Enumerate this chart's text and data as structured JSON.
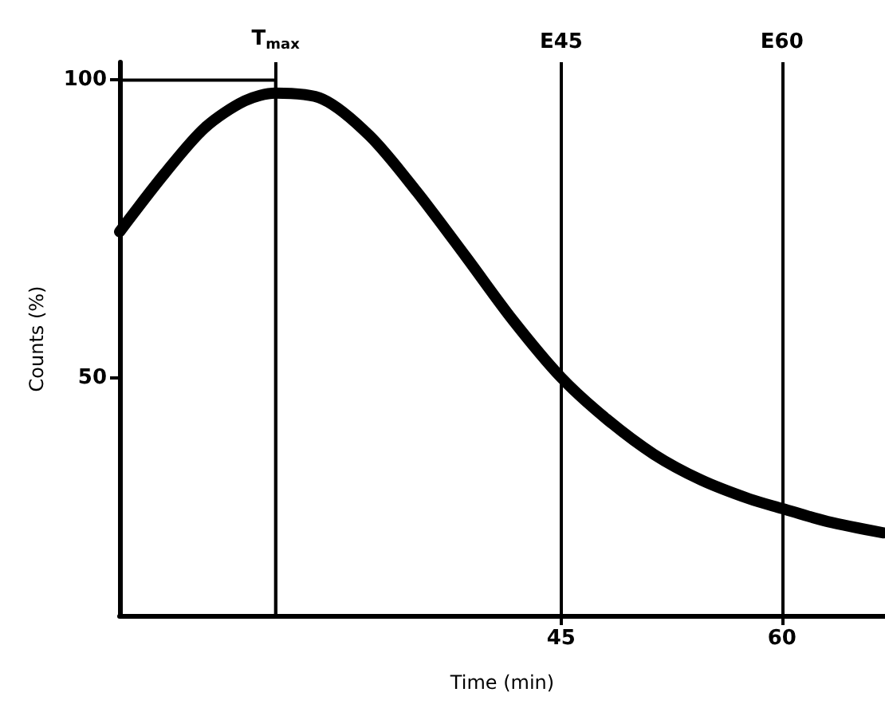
{
  "chart_data": {
    "type": "line",
    "xlabel": "Time (min)",
    "ylabel": "Counts (%)",
    "xlim": [
      15,
      67
    ],
    "xticks": [
      45,
      60
    ],
    "ylim": [
      10,
      103
    ],
    "yticks": [
      50,
      100
    ],
    "grid": false,
    "marker": "none",
    "line_style": "solid",
    "series": [
      {
        "color": "#000000",
        "x": [
          15,
          18.1,
          20.8,
          23.5,
          25.6,
          28.8,
          32.0,
          35.2,
          38.5,
          41.7,
          45,
          48.1,
          51.3,
          54.5,
          57.8,
          60,
          63.1,
          66.9
        ],
        "values": [
          74.5,
          84.4,
          92.0,
          96.5,
          97.8,
          96.8,
          90.6,
          81.2,
          70.4,
          59.7,
          50,
          43.0,
          37.1,
          32.8,
          29.6,
          28.0,
          25.8,
          23.9
        ]
      },
      {
        "color": "#000000",
        "x": [
          15,
          25.6,
          25.6
        ],
        "values": [
          100,
          100,
          10
        ]
      }
    ],
    "ref_lines": [
      {
        "axis": "x",
        "value": 25.6,
        "label": "T$_{max}$"
      },
      {
        "axis": "x",
        "value": 45,
        "label": "E45"
      },
      {
        "axis": "x",
        "value": 60,
        "label": "E60"
      }
    ]
  }
}
